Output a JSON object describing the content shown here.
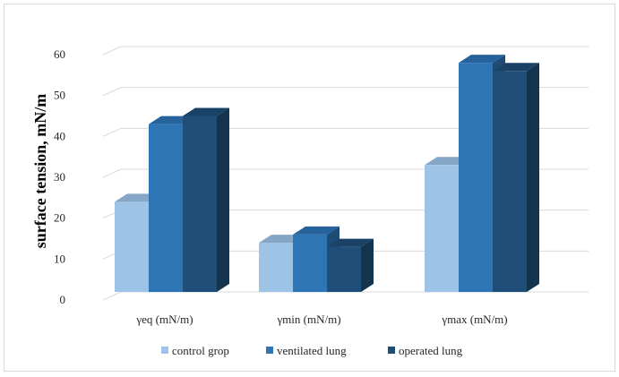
{
  "chart_data": {
    "type": "bar",
    "style": "3d-clustered-column",
    "title": "",
    "xlabel": "",
    "ylabel": "surface tension, mN/m",
    "ylim": [
      0,
      60
    ],
    "yticks": [
      0,
      10,
      20,
      30,
      40,
      50,
      60
    ],
    "categories": [
      "γeq (mN/m)",
      "γmin (mN/m)",
      "γmax (mN/m)"
    ],
    "series": [
      {
        "name": "control grop",
        "color": "#9dc3e6",
        "values": [
          24,
          14,
          33
        ]
      },
      {
        "name": "ventilated lung",
        "color": "#2e75b6",
        "values": [
          43,
          16,
          58
        ]
      },
      {
        "name": "operated lung",
        "color": "#1f4e79",
        "values": [
          45,
          13,
          56
        ]
      }
    ],
    "grid": true,
    "legend_position": "bottom"
  }
}
